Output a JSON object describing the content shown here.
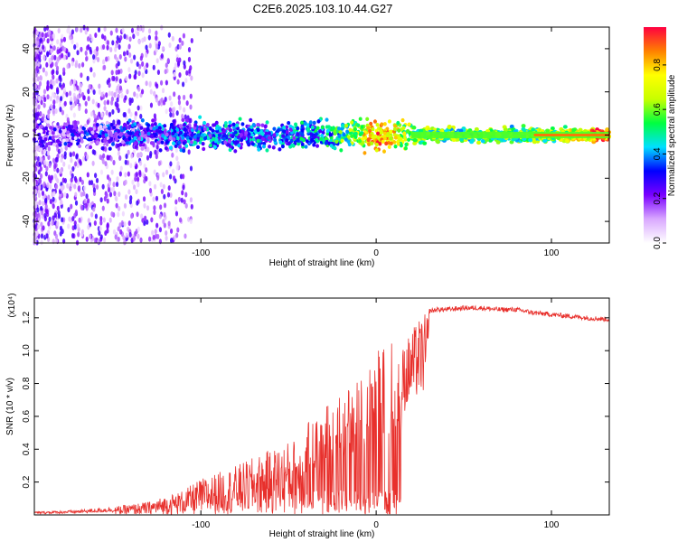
{
  "title": "C2E6.2025.103.10.44.G27",
  "chart_data": [
    {
      "type": "heatmap",
      "xlabel": "Height of straight line (km)",
      "ylabel": "Frequency (Hz)",
      "xlim": [
        -195,
        133
      ],
      "ylim": [
        -50,
        50
      ],
      "xticks": [
        -100,
        0,
        100
      ],
      "yticks": [
        -40,
        -20,
        0,
        20,
        40
      ],
      "colorbar": {
        "label": "Normalized spectral amplitude",
        "range": [
          0.0,
          0.97
        ],
        "ticks": [
          0.0,
          0.2,
          0.4,
          0.6,
          0.8
        ],
        "tick_labels": [
          "0.0",
          "0.2",
          "0.4",
          "0.6",
          "0.8"
        ],
        "colormap": [
          "#ffffff",
          "#d9a8ff",
          "#7a00ff",
          "#0000ff",
          "#00e0ff",
          "#00ff40",
          "#c8ff00",
          "#ffff00",
          "#ff8000",
          "#ff0040"
        ]
      },
      "trend": {
        "description_points_x": [
          -195,
          -150,
          -100,
          -60,
          -30,
          -10,
          0,
          20,
          60,
          100,
          133
        ],
        "center_freq": [
          0,
          0,
          0,
          0,
          0,
          0,
          0,
          0,
          0,
          0,
          0
        ],
        "amplitude": [
          0.15,
          0.25,
          0.35,
          0.35,
          0.4,
          0.65,
          0.85,
          0.6,
          0.55,
          0.6,
          0.9
        ]
      }
    },
    {
      "type": "line",
      "xlabel": "Height of straight line (km)",
      "ylabel": "SNR (10 * v/v)",
      "y_multiplier": "(x10⁴)",
      "xlim": [
        -195,
        133
      ],
      "ylim": [
        0,
        1.32
      ],
      "xticks": [
        -100,
        0,
        100
      ],
      "yticks": [
        0.2,
        0.4,
        0.6,
        0.8,
        1.0,
        1.2
      ],
      "ytick_labels": [
        "0.2",
        "0.4",
        "0.6",
        "0.8",
        "1.0",
        "1.2"
      ],
      "series": [
        {
          "name": "SNR",
          "color": "#e8302c",
          "envelope_x": [
            -195,
            -170,
            -150,
            -130,
            -110,
            -100,
            -80,
            -60,
            -40,
            -30,
            -20,
            -10,
            -5,
            0,
            5,
            10,
            15,
            20,
            25,
            30,
            35,
            40,
            50,
            60,
            70,
            80,
            90,
            100,
            110,
            120,
            133
          ],
          "envelope_y": [
            0.02,
            0.03,
            0.05,
            0.08,
            0.15,
            0.22,
            0.3,
            0.4,
            0.5,
            0.6,
            0.68,
            0.78,
            0.85,
            0.92,
            0.95,
            0.98,
            1.02,
            1.12,
            1.2,
            1.24,
            1.25,
            1.25,
            1.26,
            1.26,
            1.25,
            1.25,
            1.23,
            1.22,
            1.21,
            1.2,
            1.19
          ]
        }
      ]
    }
  ]
}
